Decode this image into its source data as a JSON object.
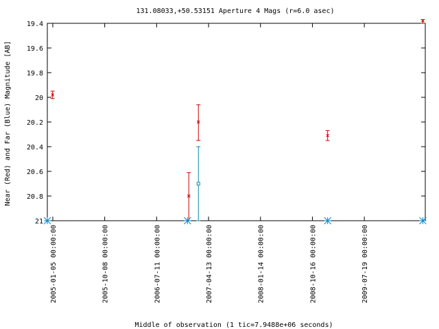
{
  "chart_data": {
    "type": "scatter",
    "title": "131.08033,+50.53151   Aperture 4 Mags (r=6.0 asec)",
    "xlabel": "Middle of observation (1 tic=7.9488e+06 seconds)",
    "ylabel": "Near (Red) and Far (Blue) Magnitude [AB]",
    "y_inverted": true,
    "ylim": [
      21,
      19.4
    ],
    "yticks": [
      19.4,
      19.6,
      19.8,
      20,
      20.2,
      20.4,
      20.6,
      20.8,
      21
    ],
    "ytick_labels": [
      "19.4",
      "19.6",
      "19.8",
      "20",
      "20.2",
      "20.4",
      "20.6",
      "20.8",
      "21"
    ],
    "xlim": [
      "2004-12-07",
      "2010-06-08"
    ],
    "xticks": [
      "2005-01-05",
      "2005-10-08",
      "2006-07-11",
      "2007-04-13",
      "2008-01-14",
      "2008-10-16",
      "2009-07-19"
    ],
    "xtick_labels": [
      "2005-01-05 00:00:00",
      "2005-10-08 00:00:00",
      "2006-07-11 00:00:00",
      "2007-04-13 00:00:00",
      "2008-01-14 00:00:00",
      "2008-10-16 00:00:00",
      "2009-07-19 00:00:00"
    ],
    "grid": false,
    "legend": "none",
    "series": [
      {
        "color": "#cc0000",
        "marker": "x",
        "points": [
          {
            "x": "2005-01-04",
            "y": 19.98,
            "ylo": 19.95,
            "yhi": 20.01
          },
          {
            "x": "2006-12-29",
            "y": 20.8,
            "ylo": 20.61,
            "yhi": 21.0
          },
          {
            "x": "2007-02-18",
            "y": 20.2,
            "ylo": 20.06,
            "yhi": 20.35
          },
          {
            "x": "2009-01-05",
            "y": 20.31,
            "ylo": 20.27,
            "yhi": 20.35
          },
          {
            "x": "2010-05-26",
            "y": 19.38,
            "ylo": 19.37,
            "yhi": 19.4
          }
        ]
      },
      {
        "color": "#0088aa",
        "marker": "square",
        "points": [
          {
            "x": "2007-02-18",
            "y": 20.7,
            "ylo": 20.4,
            "yhi": 21.0
          }
        ]
      }
    ],
    "limit_markers": {
      "color": "#0088cc",
      "marker": "asterisk",
      "y": 21,
      "x": [
        "2004-12-07",
        "2006-12-22",
        "2009-01-05",
        "2010-05-26"
      ]
    }
  }
}
